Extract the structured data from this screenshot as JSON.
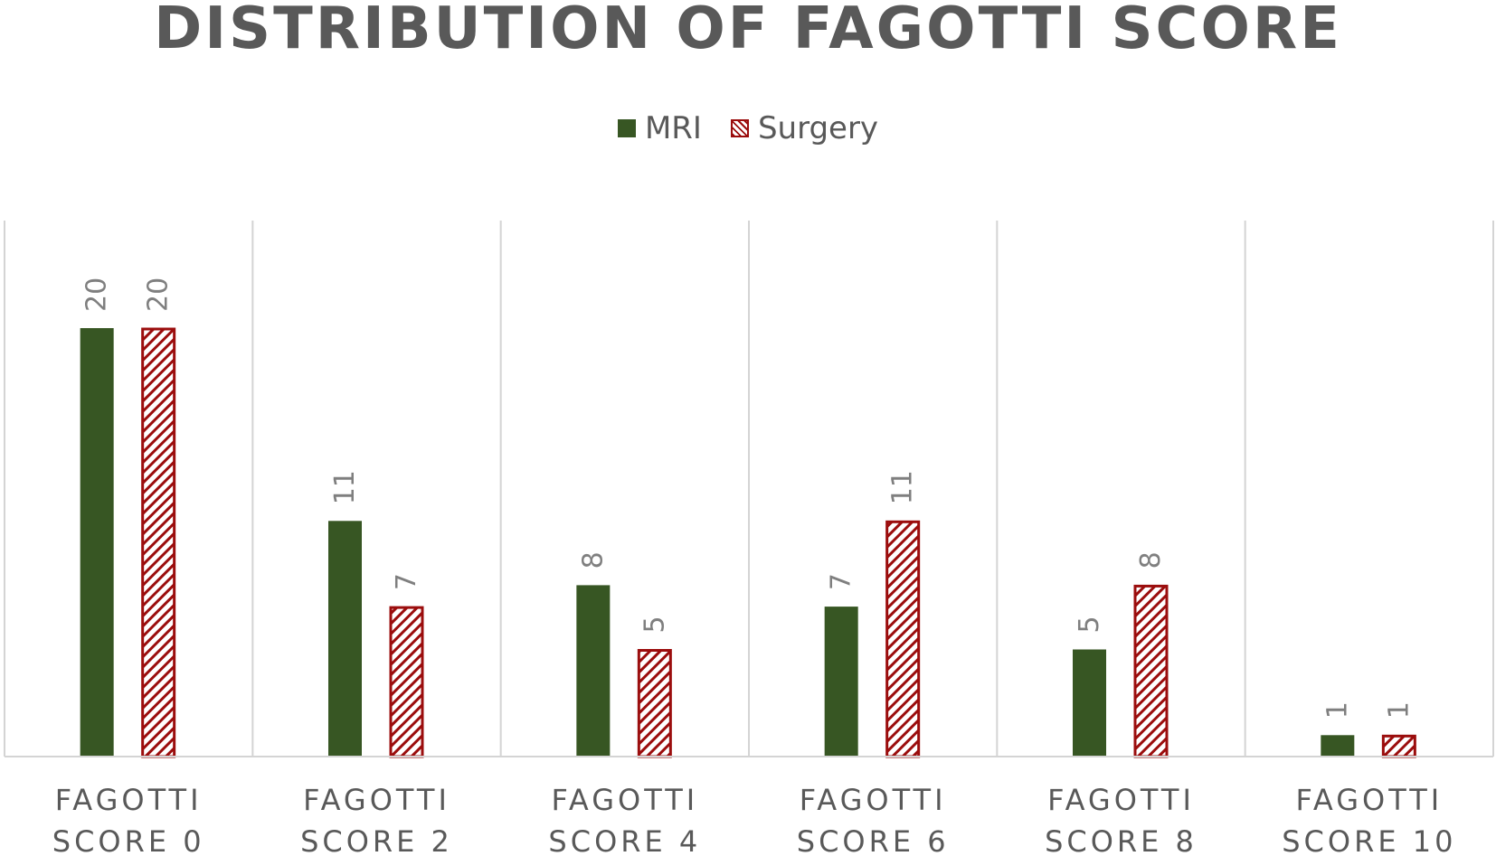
{
  "chart_data": {
    "type": "bar",
    "title": "DISTRIBUTION OF FAGOTTI SCORE",
    "categories": [
      [
        "FAGOTTI",
        "SCORE 0"
      ],
      [
        "FAGOTTI",
        "SCORE 2"
      ],
      [
        "FAGOTTI",
        "SCORE 4"
      ],
      [
        "FAGOTTI",
        "SCORE 6"
      ],
      [
        "FAGOTTI",
        "SCORE 8"
      ],
      [
        "FAGOTTI",
        "SCORE 10"
      ]
    ],
    "series": [
      {
        "name": "MRI",
        "values": [
          20,
          11,
          8,
          7,
          5,
          1
        ],
        "color": "#375623",
        "pattern": "solid"
      },
      {
        "name": "Surgery",
        "values": [
          20,
          7,
          5,
          11,
          8,
          1
        ],
        "color": "#9b0d0d",
        "pattern": "diagonal-hatch"
      }
    ],
    "xlabel": "",
    "ylabel": "",
    "ylim": [
      0,
      20
    ],
    "data_labels": true,
    "data_label_orientation": "vertical",
    "legend_position": "top",
    "grid": "vertical-category-separators"
  }
}
